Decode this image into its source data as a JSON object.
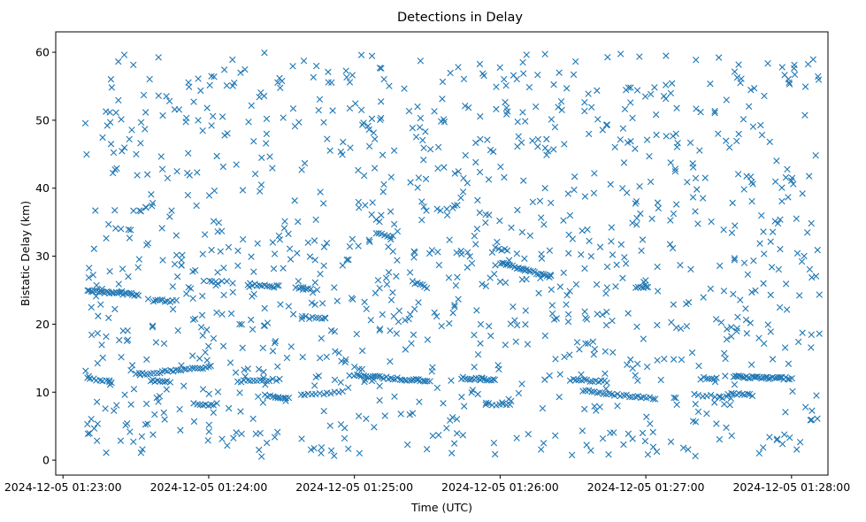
{
  "chart_data": {
    "type": "scatter",
    "title": "Detections in Delay",
    "xlabel": "Time (UTC)",
    "ylabel": "Bistatic Delay (km)",
    "marker": "x",
    "color": "#1f77b4",
    "xlim": [
      "2024-12-05 01:22:57",
      "2024-12-05 01:28:15"
    ],
    "ylim": [
      -2.2,
      63
    ],
    "xticks": [
      "2024-12-05 01:23:00",
      "2024-12-05 01:24:00",
      "2024-12-05 01:25:00",
      "2024-12-05 01:26:00",
      "2024-12-05 01:27:00",
      "2024-12-05 01:28:00"
    ],
    "yticks": [
      0,
      10,
      20,
      30,
      40,
      50,
      60
    ],
    "grid": false,
    "series": [
      {
        "tracks": [
          {
            "t0": "2024-12-05 01:23:10",
            "t1": "2024-12-05 01:23:31",
            "y0": 24.9,
            "y1": 24.3,
            "n": 28
          },
          {
            "t0": "2024-12-05 01:23:10",
            "t1": "2024-12-05 01:23:19",
            "y0": 12.1,
            "y1": 11.6,
            "n": 8
          },
          {
            "t0": "2024-12-05 01:23:30",
            "t1": "2024-12-05 01:23:41",
            "y0": 12.6,
            "y1": 13.0,
            "n": 10
          },
          {
            "t0": "2024-12-05 01:23:38",
            "t1": "2024-12-05 01:23:45",
            "y0": 23.5,
            "y1": 23.4,
            "n": 8
          },
          {
            "t0": "2024-12-05 01:23:36",
            "t1": "2024-12-05 01:23:44",
            "y0": 11.7,
            "y1": 11.6,
            "n": 9
          },
          {
            "t0": "2024-12-05 01:23:42",
            "t1": "2024-12-05 01:24:01",
            "y0": 13.1,
            "y1": 13.7,
            "n": 18
          },
          {
            "t0": "2024-12-05 01:23:54",
            "t1": "2024-12-05 01:24:02",
            "y0": 8.2,
            "y1": 8.1,
            "n": 8
          },
          {
            "t0": "2024-12-05 01:23:58",
            "t1": "2024-12-05 01:24:10",
            "y0": 26.5,
            "y1": 26.1,
            "n": 6
          },
          {
            "t0": "2024-12-05 01:24:12",
            "t1": "2024-12-05 01:24:29",
            "y0": 11.6,
            "y1": 11.8,
            "n": 14
          },
          {
            "t0": "2024-12-05 01:24:16",
            "t1": "2024-12-05 01:24:29",
            "y0": 25.9,
            "y1": 25.5,
            "n": 14
          },
          {
            "t0": "2024-12-05 01:24:23",
            "t1": "2024-12-05 01:24:33",
            "y0": 9.5,
            "y1": 9.2,
            "n": 10
          },
          {
            "t0": "2024-12-05 01:24:36",
            "t1": "2024-12-05 01:24:42",
            "y0": 25.3,
            "y1": 25.2,
            "n": 7
          },
          {
            "t0": "2024-12-05 01:24:40",
            "t1": "2024-12-05 01:24:48",
            "y0": 21.0,
            "y1": 20.7,
            "n": 7
          },
          {
            "t0": "2024-12-05 01:24:38",
            "t1": "2024-12-05 01:24:55",
            "y0": 9.6,
            "y1": 10.0,
            "n": 12
          },
          {
            "t0": "2024-12-05 01:25:00",
            "t1": "2024-12-05 01:25:31",
            "y0": 12.5,
            "y1": 11.6,
            "n": 34
          },
          {
            "t0": "2024-12-05 01:25:09",
            "t1": "2024-12-05 01:25:16",
            "y0": 33.5,
            "y1": 32.9,
            "n": 7
          },
          {
            "t0": "2024-12-05 01:25:24",
            "t1": "2024-12-05 01:25:30",
            "y0": 26.2,
            "y1": 25.4,
            "n": 7
          },
          {
            "t0": "2024-12-05 01:25:44",
            "t1": "2024-12-05 01:25:58",
            "y0": 12.1,
            "y1": 11.7,
            "n": 17
          },
          {
            "t0": "2024-12-05 01:25:58",
            "t1": "2024-12-05 01:26:03",
            "y0": 31.1,
            "y1": 30.8,
            "n": 5
          },
          {
            "t0": "2024-12-05 01:26:00",
            "t1": "2024-12-05 01:26:21",
            "y0": 29.0,
            "y1": 27.0,
            "n": 26
          },
          {
            "t0": "2024-12-05 01:25:54",
            "t1": "2024-12-05 01:26:04",
            "y0": 8.3,
            "y1": 8.1,
            "n": 8
          },
          {
            "t0": "2024-12-05 01:26:30",
            "t1": "2024-12-05 01:26:44",
            "y0": 11.9,
            "y1": 11.5,
            "n": 13
          },
          {
            "t0": "2024-12-05 01:26:34",
            "t1": "2024-12-05 01:27:04",
            "y0": 10.2,
            "y1": 9.0,
            "n": 26
          },
          {
            "t0": "2024-12-05 01:26:56",
            "t1": "2024-12-05 01:27:01",
            "y0": 25.5,
            "y1": 25.4,
            "n": 6
          },
          {
            "t0": "2024-12-05 01:27:20",
            "t1": "2024-12-05 01:27:35",
            "y0": 9.6,
            "y1": 9.2,
            "n": 10
          },
          {
            "t0": "2024-12-05 01:27:24",
            "t1": "2024-12-05 01:27:29",
            "y0": 12.2,
            "y1": 12.0,
            "n": 6
          },
          {
            "t0": "2024-12-05 01:27:36",
            "t1": "2024-12-05 01:28:00",
            "y0": 12.3,
            "y1": 12.0,
            "n": 32
          },
          {
            "t0": "2024-12-05 01:27:34",
            "t1": "2024-12-05 01:27:44",
            "y0": 9.8,
            "y1": 9.6,
            "n": 10
          }
        ],
        "clutter": {
          "t_range": [
            "2024-12-05 01:23:09",
            "2024-12-05 01:28:12"
          ],
          "y_range": [
            0.5,
            60
          ],
          "n": 1150
        }
      }
    ]
  }
}
